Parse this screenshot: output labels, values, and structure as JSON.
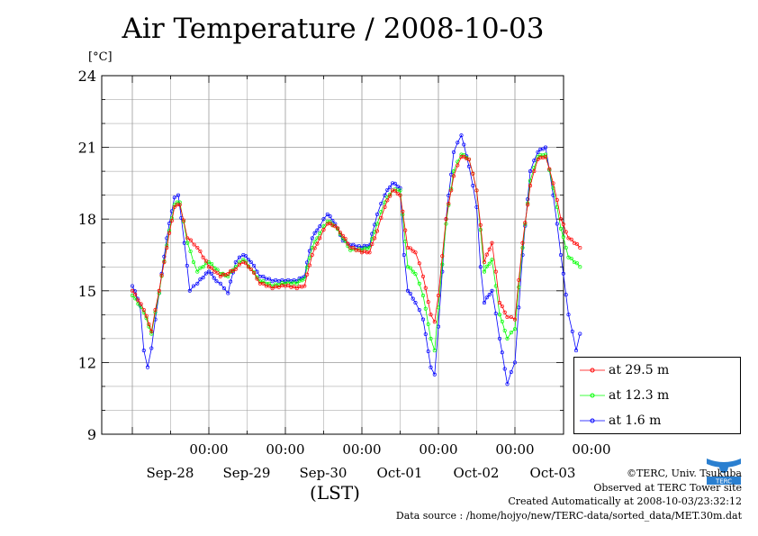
{
  "title": "Air Temperature / 2008-10-03",
  "ylabel_unit": "[°C]",
  "xlabel": "(LST)",
  "credits": {
    "line1": "©TERC, Univ. Tsukuba",
    "line2": "Observed at TERC Tower site",
    "line3": "Created Automatically at 2008-10-03/23:32:12",
    "line4": "Data source : /home/hojyo/new/TERC-data/sorted_data/MET.30m.dat"
  },
  "logo_text": "TERC",
  "colors": {
    "s29": "#ff0000",
    "s12": "#00ff00",
    "s1": "#0000ff",
    "grid": "#999999"
  },
  "chart_data": {
    "type": "line",
    "title": "Air Temperature / 2008-10-03",
    "ylabel": "[°C]",
    "xlabel": "(LST)",
    "ylim": [
      9,
      24
    ],
    "yticks": [
      9,
      12,
      15,
      18,
      21,
      24
    ],
    "xlim": [
      0,
      6
    ],
    "xticks": [
      {
        "x": 1,
        "time": "00:00",
        "date": "Sep-28"
      },
      {
        "x": 2,
        "time": "00:00",
        "date": "Sep-29"
      },
      {
        "x": 3,
        "time": "00:00",
        "date": "Sep-30"
      },
      {
        "x": 4,
        "time": "00:00",
        "date": "Oct-01"
      },
      {
        "x": 5,
        "time": "00:00",
        "date": "Oct-02"
      },
      {
        "x": 6,
        "time": "00:00",
        "date": "Oct-03"
      }
    ],
    "grid": true,
    "legend_position": "right-bottom",
    "series": [
      {
        "name": "at 29.5 m",
        "color": "#ff0000",
        "points": [
          [
            0.0,
            15.0
          ],
          [
            0.15,
            14.2
          ],
          [
            0.25,
            13.3
          ],
          [
            0.35,
            15.0
          ],
          [
            0.45,
            16.8
          ],
          [
            0.55,
            18.5
          ],
          [
            0.62,
            18.6
          ],
          [
            0.72,
            17.2
          ],
          [
            0.85,
            16.8
          ],
          [
            1.0,
            16.0
          ],
          [
            1.15,
            15.6
          ],
          [
            1.25,
            15.7
          ],
          [
            1.35,
            15.9
          ],
          [
            1.45,
            16.2
          ],
          [
            1.55,
            15.9
          ],
          [
            1.67,
            15.3
          ],
          [
            1.83,
            15.1
          ],
          [
            2.0,
            15.2
          ],
          [
            2.15,
            15.1
          ],
          [
            2.25,
            15.2
          ],
          [
            2.35,
            16.5
          ],
          [
            2.45,
            17.2
          ],
          [
            2.55,
            17.8
          ],
          [
            2.65,
            17.7
          ],
          [
            2.75,
            17.3
          ],
          [
            2.85,
            16.8
          ],
          [
            3.0,
            16.6
          ],
          [
            3.1,
            16.6
          ],
          [
            3.2,
            17.5
          ],
          [
            3.3,
            18.5
          ],
          [
            3.4,
            19.2
          ],
          [
            3.5,
            19.0
          ],
          [
            3.6,
            16.8
          ],
          [
            3.7,
            16.6
          ],
          [
            3.8,
            15.6
          ],
          [
            3.9,
            14.0
          ],
          [
            3.95,
            13.7
          ],
          [
            4.0,
            14.8
          ],
          [
            4.1,
            18.0
          ],
          [
            4.2,
            19.8
          ],
          [
            4.3,
            20.6
          ],
          [
            4.4,
            20.5
          ],
          [
            4.5,
            19.2
          ],
          [
            4.6,
            16.2
          ],
          [
            4.7,
            17.0
          ],
          [
            4.8,
            14.5
          ],
          [
            4.9,
            13.9
          ],
          [
            5.0,
            13.8
          ],
          [
            5.1,
            17.0
          ],
          [
            5.2,
            19.4
          ],
          [
            5.3,
            20.5
          ],
          [
            5.4,
            20.6
          ],
          [
            5.5,
            19.5
          ],
          [
            5.6,
            18.0
          ],
          [
            5.7,
            17.2
          ],
          [
            5.85,
            16.8
          ]
        ]
      },
      {
        "name": "at 12.3 m",
        "color": "#00ff00",
        "points": [
          [
            0.0,
            14.8
          ],
          [
            0.15,
            14.1
          ],
          [
            0.25,
            13.2
          ],
          [
            0.35,
            14.9
          ],
          [
            0.45,
            16.9
          ],
          [
            0.55,
            18.6
          ],
          [
            0.62,
            18.7
          ],
          [
            0.72,
            17.0
          ],
          [
            0.8,
            16.2
          ],
          [
            0.85,
            15.8
          ],
          [
            1.0,
            16.2
          ],
          [
            1.15,
            15.7
          ],
          [
            1.25,
            15.6
          ],
          [
            1.35,
            16.0
          ],
          [
            1.45,
            16.3
          ],
          [
            1.55,
            15.9
          ],
          [
            1.67,
            15.4
          ],
          [
            1.83,
            15.2
          ],
          [
            2.0,
            15.3
          ],
          [
            2.15,
            15.3
          ],
          [
            2.25,
            15.5
          ],
          [
            2.35,
            16.8
          ],
          [
            2.45,
            17.4
          ],
          [
            2.55,
            17.9
          ],
          [
            2.65,
            17.7
          ],
          [
            2.75,
            17.2
          ],
          [
            2.85,
            16.7
          ],
          [
            3.0,
            16.7
          ],
          [
            3.1,
            16.8
          ],
          [
            3.2,
            17.8
          ],
          [
            3.3,
            18.7
          ],
          [
            3.4,
            19.2
          ],
          [
            3.5,
            19.2
          ],
          [
            3.6,
            16.0
          ],
          [
            3.7,
            15.7
          ],
          [
            3.8,
            14.8
          ],
          [
            3.9,
            13.0
          ],
          [
            3.95,
            12.5
          ],
          [
            4.0,
            14.3
          ],
          [
            4.1,
            17.8
          ],
          [
            4.2,
            20.0
          ],
          [
            4.3,
            20.7
          ],
          [
            4.4,
            20.5
          ],
          [
            4.5,
            19.2
          ],
          [
            4.6,
            15.8
          ],
          [
            4.7,
            16.3
          ],
          [
            4.8,
            14.0
          ],
          [
            4.9,
            13.0
          ],
          [
            5.0,
            13.4
          ],
          [
            5.1,
            16.8
          ],
          [
            5.2,
            19.6
          ],
          [
            5.3,
            20.6
          ],
          [
            5.4,
            20.7
          ],
          [
            5.5,
            19.3
          ],
          [
            5.6,
            17.6
          ],
          [
            5.7,
            16.4
          ],
          [
            5.85,
            16.0
          ]
        ]
      },
      {
        "name": "at 1.6 m",
        "color": "#0000ff",
        "points": [
          [
            0.0,
            15.2
          ],
          [
            0.1,
            14.4
          ],
          [
            0.15,
            12.5
          ],
          [
            0.2,
            11.8
          ],
          [
            0.25,
            12.6
          ],
          [
            0.35,
            14.9
          ],
          [
            0.45,
            17.2
          ],
          [
            0.55,
            18.9
          ],
          [
            0.6,
            19.0
          ],
          [
            0.68,
            17.0
          ],
          [
            0.75,
            15.0
          ],
          [
            0.85,
            15.3
          ],
          [
            1.0,
            15.8
          ],
          [
            1.1,
            15.4
          ],
          [
            1.2,
            15.1
          ],
          [
            1.25,
            14.9
          ],
          [
            1.35,
            16.2
          ],
          [
            1.45,
            16.5
          ],
          [
            1.55,
            16.2
          ],
          [
            1.67,
            15.6
          ],
          [
            1.83,
            15.4
          ],
          [
            2.0,
            15.4
          ],
          [
            2.15,
            15.4
          ],
          [
            2.25,
            15.6
          ],
          [
            2.35,
            17.2
          ],
          [
            2.45,
            17.7
          ],
          [
            2.55,
            18.2
          ],
          [
            2.65,
            17.8
          ],
          [
            2.75,
            17.1
          ],
          [
            2.85,
            16.9
          ],
          [
            3.0,
            16.8
          ],
          [
            3.1,
            16.9
          ],
          [
            3.2,
            18.2
          ],
          [
            3.3,
            19.0
          ],
          [
            3.4,
            19.5
          ],
          [
            3.5,
            19.3
          ],
          [
            3.55,
            16.5
          ],
          [
            3.6,
            15.0
          ],
          [
            3.7,
            14.5
          ],
          [
            3.8,
            13.8
          ],
          [
            3.9,
            11.8
          ],
          [
            3.95,
            11.5
          ],
          [
            4.0,
            13.5
          ],
          [
            4.1,
            18.0
          ],
          [
            4.2,
            20.8
          ],
          [
            4.3,
            21.5
          ],
          [
            4.4,
            20.2
          ],
          [
            4.5,
            18.5
          ],
          [
            4.55,
            16.0
          ],
          [
            4.6,
            14.5
          ],
          [
            4.7,
            15.0
          ],
          [
            4.8,
            13.0
          ],
          [
            4.9,
            11.1
          ],
          [
            5.0,
            12.0
          ],
          [
            5.1,
            16.5
          ],
          [
            5.2,
            20.0
          ],
          [
            5.3,
            20.8
          ],
          [
            5.4,
            21.0
          ],
          [
            5.5,
            19.0
          ],
          [
            5.6,
            16.5
          ],
          [
            5.7,
            14.0
          ],
          [
            5.8,
            12.5
          ],
          [
            5.85,
            13.2
          ]
        ]
      }
    ]
  }
}
